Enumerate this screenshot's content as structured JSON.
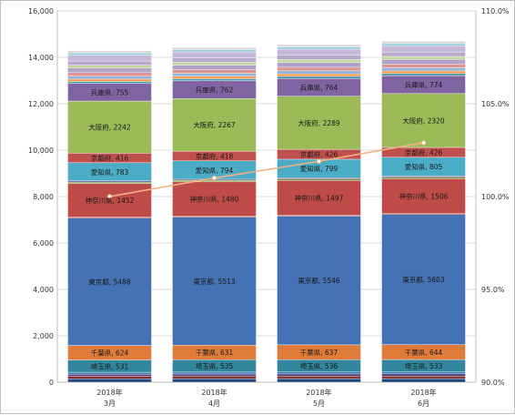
{
  "chart_data": {
    "type": "bar",
    "stacked": true,
    "categories": [
      [
        "2018年",
        "3月"
      ],
      [
        "2018年",
        "4月"
      ],
      [
        "2018年",
        "5月"
      ],
      [
        "2018年",
        "6月"
      ]
    ],
    "y_left": {
      "lim": [
        0,
        16000
      ],
      "step": 2000,
      "ticks": [
        "0",
        "2,000",
        "4,000",
        "6,000",
        "8,000",
        "10,000",
        "12,000",
        "14,000",
        "16,000"
      ]
    },
    "y_right": {
      "lim": [
        90,
        110
      ],
      "step": 5,
      "ticks": [
        "90.0%",
        "95.0%",
        "100.0%",
        "105.0%",
        "110.0%"
      ]
    },
    "grid": true,
    "series": [
      {
        "name": "",
        "color": "#1f497d",
        "values": [
          150,
          152,
          153,
          155
        ],
        "show_label": false
      },
      {
        "name": "",
        "color": "#7f2e2e",
        "values": [
          110,
          111,
          112,
          113
        ],
        "show_label": false
      },
      {
        "name": "",
        "color": "#5b3d7a",
        "values": [
          90,
          91,
          92,
          93
        ],
        "show_label": false
      },
      {
        "name": "",
        "color": "#2e75b6",
        "values": [
          80,
          81,
          82,
          83
        ],
        "show_label": false
      },
      {
        "name": "埼玉県",
        "color": "#31859c",
        "values": [
          531,
          535,
          536,
          533
        ],
        "show_label": true
      },
      {
        "name": "千葉県",
        "color": "#e07b39",
        "values": [
          624,
          631,
          637,
          644
        ],
        "show_label": true
      },
      {
        "name": "東京都",
        "color": "#4472b4",
        "values": [
          5488,
          5513,
          5546,
          5603
        ],
        "show_label": true
      },
      {
        "name": "",
        "color": "#8c3a3a",
        "values": [
          40,
          40,
          41,
          41
        ],
        "show_label": false
      },
      {
        "name": "神奈川県",
        "color": "#be4b48",
        "values": [
          1452,
          1480,
          1497,
          1506
        ],
        "show_label": true
      },
      {
        "name": "",
        "color": "#7a9a3e",
        "values": [
          60,
          61,
          62,
          63
        ],
        "show_label": false
      },
      {
        "name": "",
        "color": "#6c5a8c",
        "values": [
          50,
          51,
          52,
          53
        ],
        "show_label": false
      },
      {
        "name": "愛知県",
        "color": "#4bacc6",
        "values": [
          783,
          794,
          799,
          805
        ],
        "show_label": true
      },
      {
        "name": "京都府",
        "color": "#c0504d",
        "values": [
          416,
          418,
          426,
          426
        ],
        "show_label": true
      },
      {
        "name": "大阪府",
        "color": "#9bbb59",
        "values": [
          2242,
          2267,
          2289,
          2320
        ],
        "show_label": true
      },
      {
        "name": "兵庫県",
        "color": "#8064a2",
        "values": [
          755,
          762,
          764,
          774
        ],
        "show_label": true
      },
      {
        "name": "",
        "color": "#4a9bb0",
        "values": [
          90,
          92,
          93,
          94
        ],
        "show_label": false
      },
      {
        "name": "",
        "color": "#f79646",
        "values": [
          100,
          102,
          104,
          106
        ],
        "show_label": false
      },
      {
        "name": "",
        "color": "#95b3d7",
        "values": [
          130,
          132,
          134,
          136
        ],
        "show_label": false
      },
      {
        "name": "",
        "color": "#d99694",
        "values": [
          150,
          152,
          154,
          156
        ],
        "show_label": false
      },
      {
        "name": "",
        "color": "#b3a2c7",
        "values": [
          200,
          203,
          206,
          209
        ],
        "show_label": false
      },
      {
        "name": "",
        "color": "#c3d69b",
        "values": [
          120,
          122,
          124,
          126
        ],
        "show_label": false
      },
      {
        "name": "",
        "color": "#b7a8cc",
        "values": [
          180,
          183,
          186,
          189
        ],
        "show_label": false
      },
      {
        "name": "",
        "color": "#c5b9d8",
        "values": [
          260,
          262,
          265,
          268
        ],
        "show_label": false
      },
      {
        "name": "",
        "color": "#93cddd",
        "values": [
          90,
          91,
          92,
          93
        ],
        "show_label": false
      },
      {
        "name": "",
        "color": "#d9d9d9",
        "values": [
          98,
          100,
          102,
          104
        ],
        "show_label": false
      }
    ],
    "line": {
      "name": "",
      "color": "#f4b183",
      "axis": "right",
      "values": [
        100.0,
        101.0,
        101.9,
        102.9
      ]
    }
  }
}
